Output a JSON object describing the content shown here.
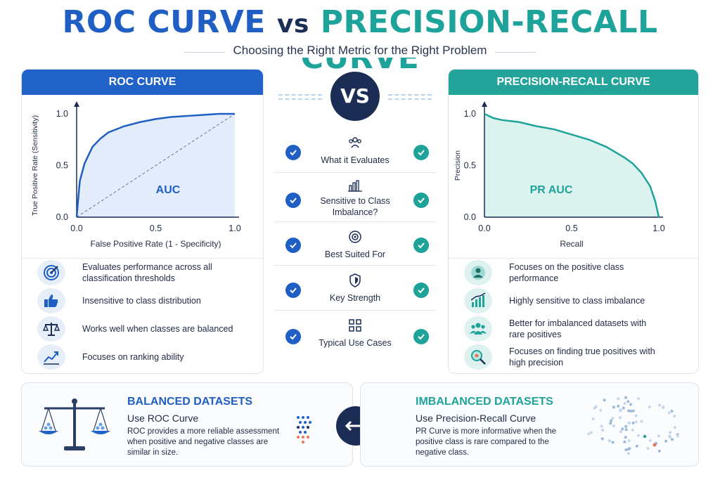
{
  "header": {
    "title_roc": "ROC CURVE",
    "title_vs": "vs",
    "title_pr": "PRECISION-RECALL CURVE",
    "subtitle": "Choosing the Right Metric for the Right Problem"
  },
  "roc_panel": {
    "heading": "ROC CURVE",
    "features": [
      {
        "icon": "target-icon",
        "text": "Evaluates performance across all classification thresholds"
      },
      {
        "icon": "thumbs-up-icon",
        "text": "Insensitive to class distribution"
      },
      {
        "icon": "scale-icon",
        "text": "Works well when classes are balanced"
      },
      {
        "icon": "trend-chart-icon",
        "text": "Focuses on ranking ability"
      }
    ]
  },
  "pr_panel": {
    "heading": "PRECISION-RECALL CURVE",
    "features": [
      {
        "icon": "user-focus-icon",
        "text": "Focuses on the positive class performance"
      },
      {
        "icon": "bar-trend-icon",
        "text": "Highly sensitive to class imbalance"
      },
      {
        "icon": "people-group-icon",
        "text": "Better for imbalanced datasets with rare positives"
      },
      {
        "icon": "magnifier-icon",
        "text": "Focuses on finding true positives with high precision"
      }
    ]
  },
  "middle": {
    "vs_label": "VS",
    "rows": [
      {
        "icon": "people-icon",
        "label": "What it Evaluates"
      },
      {
        "icon": "bar-chart-icon",
        "label": "Sensitive to Class Imbalance?"
      },
      {
        "icon": "target-icon",
        "label": "Best Suited For"
      },
      {
        "icon": "shield-icon",
        "label": "Key Strength"
      },
      {
        "icon": "grid-icon",
        "label": "Typical Use Cases"
      }
    ]
  },
  "chart_data": [
    {
      "type": "area",
      "x": [
        0,
        0.02,
        0.05,
        0.1,
        0.15,
        0.2,
        0.3,
        0.4,
        0.5,
        0.6,
        0.7,
        0.8,
        0.9,
        1.0
      ],
      "series": [
        {
          "values": [
            0,
            0.35,
            0.52,
            0.68,
            0.76,
            0.82,
            0.88,
            0.92,
            0.95,
            0.97,
            0.98,
            0.99,
            1.0,
            1.0
          ]
        }
      ],
      "diagonal": true,
      "annotation": "AUC",
      "xlabel": "False Positive Rate (1 - Specificity)",
      "ylabel": "True Positive Rate (Sensitivity)",
      "xticks": [
        "0.0",
        "0.5",
        "1.0"
      ],
      "yticks": [
        "0.0",
        "0.5",
        "1.0"
      ],
      "xlim": [
        0,
        1
      ],
      "ylim": [
        0,
        1
      ],
      "colors": {
        "line": "#1f5fc4",
        "fill": "#e3ecfa"
      }
    },
    {
      "type": "area",
      "x": [
        0,
        0.05,
        0.1,
        0.2,
        0.3,
        0.4,
        0.5,
        0.6,
        0.7,
        0.8,
        0.85,
        0.9,
        0.95,
        0.98,
        1.0
      ],
      "series": [
        {
          "values": [
            1.0,
            0.96,
            0.94,
            0.92,
            0.88,
            0.85,
            0.8,
            0.75,
            0.68,
            0.58,
            0.52,
            0.43,
            0.3,
            0.15,
            0.0
          ]
        }
      ],
      "annotation": "PR AUC",
      "xlabel": "Recall",
      "ylabel": "Precision",
      "xticks": [
        "0.0",
        "0.5",
        "1.0"
      ],
      "yticks": [
        "0.0",
        "0.5",
        "1.0"
      ],
      "xlim": [
        0,
        1
      ],
      "ylim": [
        0,
        1
      ],
      "colors": {
        "line": "#1ea39a",
        "fill": "#dcf2ef"
      }
    }
  ],
  "balanced": {
    "title": "BALANCED DATASETS",
    "subtitle": "Use ROC Curve",
    "description": "ROC provides a more reliable assessment when positive and negative classes are similar in size."
  },
  "imbalanced": {
    "title": "IMBALANCED DATASETS",
    "subtitle": "Use Precision-Recall Curve",
    "description": "PR Curve is more informative when the positive class is rare compared to the negative class."
  }
}
